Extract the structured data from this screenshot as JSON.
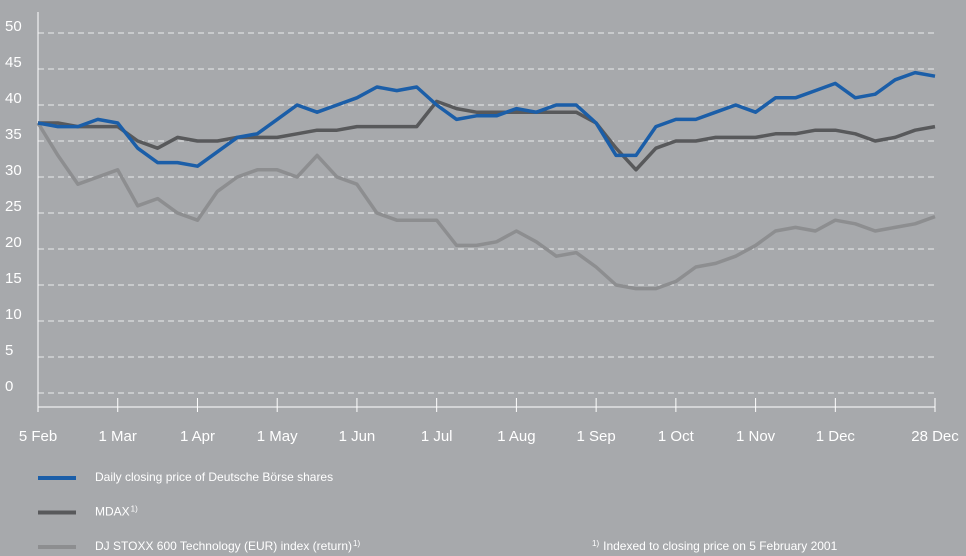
{
  "chart_data": {
    "type": "line",
    "categories": [
      "5 Feb",
      null,
      null,
      null,
      "1 Mar",
      null,
      null,
      null,
      "1 Apr",
      null,
      null,
      null,
      "1 May",
      null,
      null,
      null,
      "1 Jun",
      null,
      null,
      null,
      "1 Jul",
      null,
      null,
      null,
      "1 Aug",
      null,
      null,
      null,
      "1 Sep",
      null,
      null,
      null,
      "1 Oct",
      null,
      null,
      null,
      "1 Nov",
      null,
      null,
      null,
      "1 Dec",
      null,
      null,
      null,
      null,
      "28 Dec"
    ],
    "series": [
      {
        "name": "Daily closing price of Deutsche Börse shares",
        "color": "#1b5ea8",
        "values": [
          37.5,
          37,
          37,
          38,
          37.5,
          34,
          32,
          32,
          31.5,
          33.5,
          35.5,
          36,
          38,
          40,
          39,
          40,
          41,
          42.5,
          42,
          42.5,
          40,
          38,
          38.5,
          38.5,
          39.5,
          39,
          40,
          40,
          37.5,
          33,
          33,
          37,
          38,
          38,
          39,
          40,
          39,
          41,
          41,
          42,
          43,
          41,
          41.5,
          43.5,
          44.5,
          44
        ]
      },
      {
        "name": "MDAX",
        "footnote": "1)",
        "color": "#58595b",
        "values": [
          37.5,
          37.5,
          37,
          37,
          37,
          35,
          34,
          35.5,
          35,
          35,
          35.5,
          35.5,
          35.5,
          36,
          36.5,
          36.5,
          37,
          37,
          37,
          37,
          40.5,
          39.5,
          39,
          39,
          39,
          39,
          39,
          39,
          37.5,
          34,
          31,
          34,
          35,
          35,
          35.5,
          35.5,
          35.5,
          36,
          36,
          36.5,
          36.5,
          36,
          35,
          35.5,
          36.5,
          37
        ]
      },
      {
        "name": "DJ STOXX 600 Technology (EUR) index (return)",
        "footnote": "1)",
        "color": "#8d8e90",
        "values": [
          37.5,
          33,
          29,
          30,
          31,
          26,
          27,
          25,
          24,
          28,
          30,
          31,
          31,
          30,
          33,
          30,
          29,
          25,
          24,
          24,
          24,
          20.5,
          20.5,
          21,
          22.5,
          21,
          19,
          19.5,
          17.5,
          15,
          14.5,
          14.5,
          15.5,
          17.5,
          18,
          19,
          20.5,
          22.5,
          23,
          22.5,
          24,
          23.5,
          22.5,
          23,
          23.5,
          24.5
        ]
      }
    ],
    "ylim": [
      0,
      50
    ],
    "yticks": [
      0,
      5,
      10,
      15,
      20,
      25,
      30,
      35,
      40,
      45,
      50
    ],
    "grid": true,
    "footnote": {
      "marker": "1)",
      "text": "Indexed to closing price on 5 February 2001"
    }
  }
}
